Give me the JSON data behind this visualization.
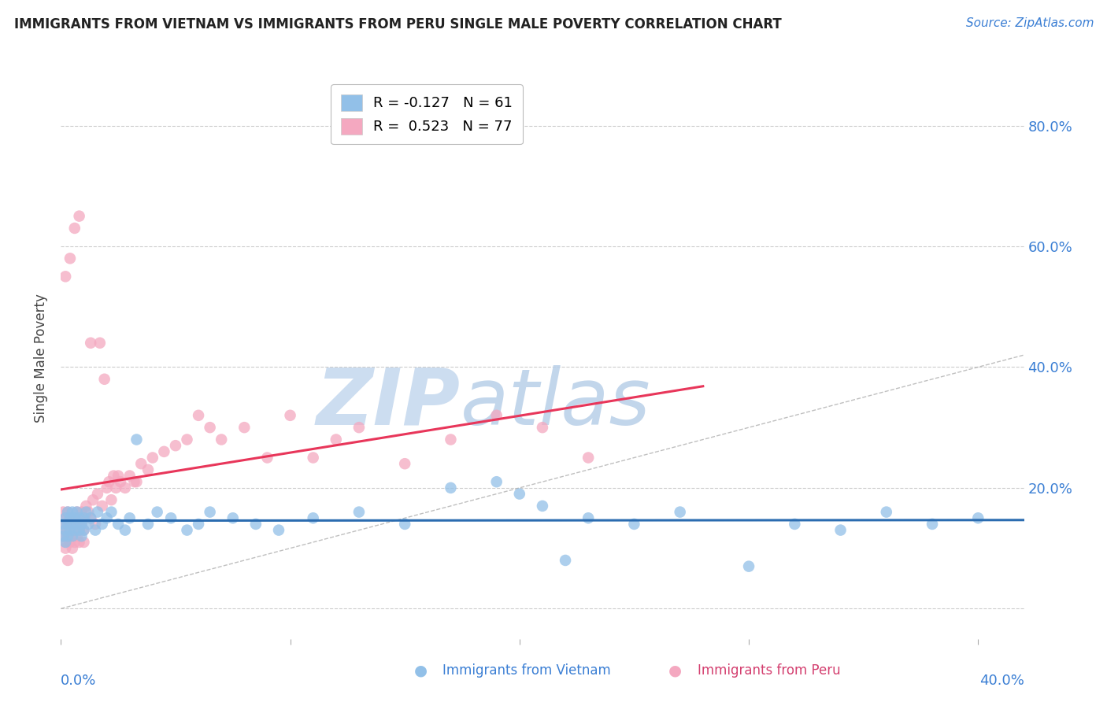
{
  "title": "IMMIGRANTS FROM VIETNAM VS IMMIGRANTS FROM PERU SINGLE MALE POVERTY CORRELATION CHART",
  "source": "Source: ZipAtlas.com",
  "ylabel": "Single Male Poverty",
  "ytick_vals": [
    0.0,
    0.2,
    0.4,
    0.6,
    0.8
  ],
  "ytick_labels": [
    "",
    "20.0%",
    "40.0%",
    "60.0%",
    "80.0%"
  ],
  "xtick_vals": [
    0.0,
    0.1,
    0.2,
    0.3,
    0.4
  ],
  "xlim": [
    0.0,
    0.42
  ],
  "ylim": [
    -0.05,
    0.88
  ],
  "vietnam_R": -0.127,
  "vietnam_N": 61,
  "peru_R": 0.523,
  "peru_N": 77,
  "vietnam_color": "#92c0e8",
  "peru_color": "#f4a8c0",
  "vietnam_line_color": "#2b6cb0",
  "peru_line_color": "#e8365a",
  "watermark_zip": "ZIP",
  "watermark_atlas": "atlas",
  "watermark_color": "#ccddf0",
  "vietnam_x": [
    0.001,
    0.001,
    0.002,
    0.002,
    0.002,
    0.003,
    0.003,
    0.003,
    0.004,
    0.004,
    0.005,
    0.005,
    0.005,
    0.006,
    0.006,
    0.007,
    0.007,
    0.008,
    0.008,
    0.009,
    0.009,
    0.01,
    0.01,
    0.011,
    0.012,
    0.013,
    0.015,
    0.016,
    0.018,
    0.02,
    0.022,
    0.025,
    0.028,
    0.03,
    0.033,
    0.038,
    0.042,
    0.048,
    0.055,
    0.06,
    0.065,
    0.075,
    0.085,
    0.095,
    0.11,
    0.13,
    0.15,
    0.17,
    0.19,
    0.21,
    0.23,
    0.25,
    0.27,
    0.3,
    0.32,
    0.34,
    0.36,
    0.38,
    0.4,
    0.2,
    0.22
  ],
  "vietnam_y": [
    0.14,
    0.12,
    0.15,
    0.13,
    0.11,
    0.14,
    0.12,
    0.16,
    0.13,
    0.15,
    0.14,
    0.12,
    0.16,
    0.13,
    0.15,
    0.14,
    0.16,
    0.13,
    0.15,
    0.14,
    0.12,
    0.15,
    0.13,
    0.16,
    0.14,
    0.15,
    0.13,
    0.16,
    0.14,
    0.15,
    0.16,
    0.14,
    0.13,
    0.15,
    0.28,
    0.14,
    0.16,
    0.15,
    0.13,
    0.14,
    0.16,
    0.15,
    0.14,
    0.13,
    0.15,
    0.16,
    0.14,
    0.2,
    0.21,
    0.17,
    0.15,
    0.14,
    0.16,
    0.07,
    0.14,
    0.13,
    0.16,
    0.14,
    0.15,
    0.19,
    0.08
  ],
  "peru_x": [
    0.001,
    0.001,
    0.001,
    0.002,
    0.002,
    0.002,
    0.002,
    0.003,
    0.003,
    0.003,
    0.003,
    0.004,
    0.004,
    0.004,
    0.005,
    0.005,
    0.005,
    0.005,
    0.006,
    0.006,
    0.006,
    0.007,
    0.007,
    0.007,
    0.008,
    0.008,
    0.008,
    0.009,
    0.009,
    0.01,
    0.01,
    0.01,
    0.011,
    0.012,
    0.013,
    0.013,
    0.014,
    0.015,
    0.016,
    0.017,
    0.018,
    0.019,
    0.02,
    0.021,
    0.022,
    0.023,
    0.024,
    0.025,
    0.026,
    0.028,
    0.03,
    0.032,
    0.033,
    0.035,
    0.038,
    0.04,
    0.045,
    0.05,
    0.055,
    0.06,
    0.065,
    0.07,
    0.08,
    0.09,
    0.1,
    0.11,
    0.12,
    0.13,
    0.15,
    0.17,
    0.19,
    0.21,
    0.23,
    0.002,
    0.004,
    0.006,
    0.008
  ],
  "peru_y": [
    0.14,
    0.12,
    0.16,
    0.13,
    0.11,
    0.15,
    0.1,
    0.14,
    0.12,
    0.16,
    0.08,
    0.13,
    0.15,
    0.11,
    0.14,
    0.13,
    0.12,
    0.1,
    0.15,
    0.13,
    0.11,
    0.14,
    0.12,
    0.16,
    0.13,
    0.15,
    0.11,
    0.14,
    0.16,
    0.13,
    0.15,
    0.11,
    0.17,
    0.16,
    0.15,
    0.44,
    0.18,
    0.14,
    0.19,
    0.44,
    0.17,
    0.38,
    0.2,
    0.21,
    0.18,
    0.22,
    0.2,
    0.22,
    0.21,
    0.2,
    0.22,
    0.21,
    0.21,
    0.24,
    0.23,
    0.25,
    0.26,
    0.27,
    0.28,
    0.32,
    0.3,
    0.28,
    0.3,
    0.25,
    0.32,
    0.25,
    0.28,
    0.3,
    0.24,
    0.28,
    0.32,
    0.3,
    0.25,
    0.55,
    0.58,
    0.63,
    0.65
  ]
}
